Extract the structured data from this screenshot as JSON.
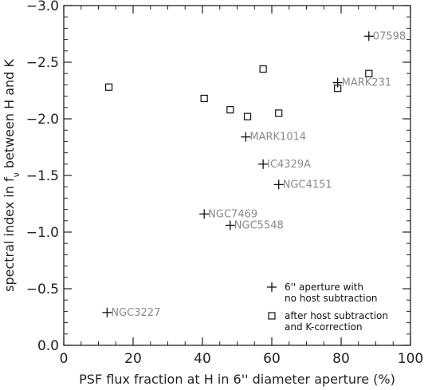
{
  "chart_data": {
    "type": "scatter",
    "title": "",
    "xlabel": "PSF flux fraction at H in 6'' diameter aperture (%)",
    "ylabel_main": "spectral index in f",
    "ylabel_sub": "ν",
    "ylabel_tail": " between H and K",
    "xlim": [
      0,
      100
    ],
    "ylim": [
      0.0,
      -3.0
    ],
    "y_inverted": true,
    "xticks": [
      0,
      20,
      40,
      60,
      80,
      100
    ],
    "xtick_labels": [
      "0",
      "20",
      "40",
      "60",
      "80",
      "100"
    ],
    "yticks": [
      -3.0,
      -2.5,
      -2.0,
      -1.5,
      -1.0,
      -0.5,
      0.0
    ],
    "ytick_labels": [
      "−3.0",
      "−2.5",
      "−2.0",
      "−1.5",
      "−1.0",
      "−0.5",
      "0.0"
    ],
    "grid": false,
    "legend_position": "bottom-right",
    "series": [
      {
        "name": "6'' aperture with no host subtraction",
        "marker": "plus",
        "points": [
          {
            "x": 12.5,
            "y": -0.29,
            "label": "NGC3227"
          },
          {
            "x": 40.5,
            "y": -1.16,
            "label": "NGC7469"
          },
          {
            "x": 48.0,
            "y": -1.06,
            "label": "NGC5548"
          },
          {
            "x": 52.5,
            "y": -1.84,
            "label": "MARK1014"
          },
          {
            "x": 57.5,
            "y": -1.6,
            "label": "IC4329A"
          },
          {
            "x": 62.0,
            "y": -1.42,
            "label": "NGC4151"
          },
          {
            "x": 79.0,
            "y": -2.32,
            "label": "MARK231"
          },
          {
            "x": 88.0,
            "y": -2.73,
            "label": "07598"
          }
        ]
      },
      {
        "name": "after host subtraction and K-correction",
        "marker": "square",
        "points": [
          {
            "x": 13.0,
            "y": -2.28
          },
          {
            "x": 40.5,
            "y": -2.18
          },
          {
            "x": 48.0,
            "y": -2.08
          },
          {
            "x": 53.0,
            "y": -2.02
          },
          {
            "x": 57.5,
            "y": -2.44
          },
          {
            "x": 62.0,
            "y": -2.05
          },
          {
            "x": 79.0,
            "y": -2.27
          },
          {
            "x": 88.0,
            "y": -2.4
          }
        ]
      }
    ],
    "legend": [
      {
        "marker": "plus",
        "line1": "6'' aperture with",
        "line2": "no host subtraction"
      },
      {
        "marker": "square",
        "line1": "after host subtraction",
        "line2": "and K-correction"
      }
    ]
  },
  "colors": {
    "axis": "#222222",
    "marker": "#111111",
    "point_label": "#8a8a8a",
    "background": "#ffffff"
  }
}
